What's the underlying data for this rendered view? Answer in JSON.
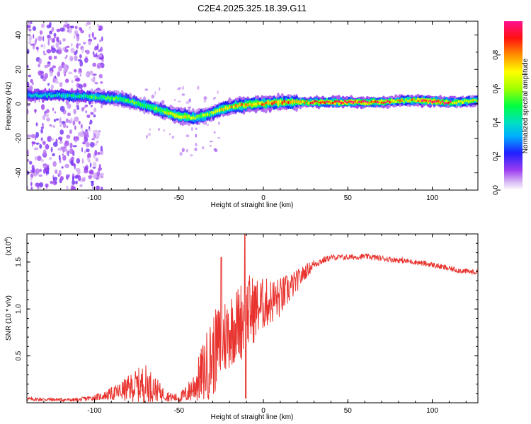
{
  "chart_data": [
    {
      "type": "heatmap",
      "title": "C2E4.2025.325.18.39.G11",
      "xlabel": "Height of straight line (km)",
      "ylabel": "Frequency (Hz)",
      "xlim": [
        -140,
        127
      ],
      "ylim": [
        -50,
        48
      ],
      "xticks": [
        -100,
        -50,
        0,
        50,
        100
      ],
      "yticks": [
        -40,
        -20,
        0,
        20,
        40
      ],
      "ridge": {
        "x": [
          -140,
          -120,
          -100,
          -85,
          -70,
          -60,
          -50,
          -40,
          -32,
          -25,
          -15,
          -5,
          0,
          10,
          20,
          30,
          50,
          70,
          85,
          95,
          105,
          115,
          127
        ],
        "freq": [
          5,
          5,
          4,
          3,
          -1,
          -4,
          -7,
          -8,
          -6,
          -3,
          -1,
          0,
          0,
          1,
          1,
          1,
          1,
          1,
          2,
          2,
          1,
          1,
          2
        ],
        "amplitude": [
          0.35,
          0.4,
          0.5,
          0.55,
          0.55,
          0.6,
          0.75,
          0.6,
          0.6,
          0.7,
          0.75,
          0.8,
          0.8,
          0.8,
          0.8,
          0.85,
          0.95,
          0.9,
          0.7,
          0.95,
          0.95,
          0.8,
          0.65
        ]
      },
      "colorbar": {
        "label": "Normalized spectral amplitude",
        "range": [
          0,
          1
        ],
        "ticks": [
          "0.0",
          "0.2",
          "0.4",
          "0.6",
          "0.8"
        ],
        "tick_values": [
          0,
          0.2,
          0.4,
          0.6,
          0.8
        ]
      }
    },
    {
      "type": "line",
      "xlabel": "Height of straight line (km)",
      "ylabel": "SNR (10 * v/v)",
      "multiplier_base": "(x10",
      "multiplier_exp": "4",
      "multiplier_close": ")",
      "xlim": [
        -140,
        127
      ],
      "ylim": [
        0,
        1.8
      ],
      "xticks": [
        -100,
        -50,
        0,
        50,
        100
      ],
      "yticks": [
        0.5,
        1.0,
        1.5
      ],
      "ytick_labels": [
        "0.5",
        "1.0",
        "1.5"
      ],
      "color": "#e8332e",
      "envelope": {
        "x": [
          -140,
          -110,
          -95,
          -85,
          -75,
          -70,
          -65,
          -60,
          -55,
          -50,
          -45,
          -40,
          -35,
          -30,
          -25,
          -20,
          -15,
          -12,
          -10,
          -5,
          0,
          10,
          20,
          25,
          30,
          40,
          50,
          60,
          70,
          80,
          90,
          100,
          110,
          120,
          127
        ],
        "y": [
          0.04,
          0.03,
          0.07,
          0.12,
          0.18,
          0.2,
          0.16,
          0.1,
          0.06,
          0.05,
          0.1,
          0.2,
          0.35,
          0.5,
          0.65,
          0.78,
          0.85,
          0.9,
          0.95,
          1.0,
          1.05,
          1.12,
          1.3,
          1.4,
          1.48,
          1.55,
          1.55,
          1.56,
          1.54,
          1.52,
          1.5,
          1.47,
          1.43,
          1.4,
          1.39
        ],
        "amp": [
          0.02,
          0.02,
          0.04,
          0.1,
          0.18,
          0.22,
          0.15,
          0.08,
          0.05,
          0.05,
          0.1,
          0.2,
          0.35,
          0.45,
          0.45,
          0.42,
          0.4,
          0.45,
          0.45,
          0.35,
          0.28,
          0.22,
          0.12,
          0.08,
          0.05,
          0.03,
          0.03,
          0.03,
          0.03,
          0.03,
          0.03,
          0.03,
          0.03,
          0.03,
          0.03
        ]
      }
    }
  ]
}
